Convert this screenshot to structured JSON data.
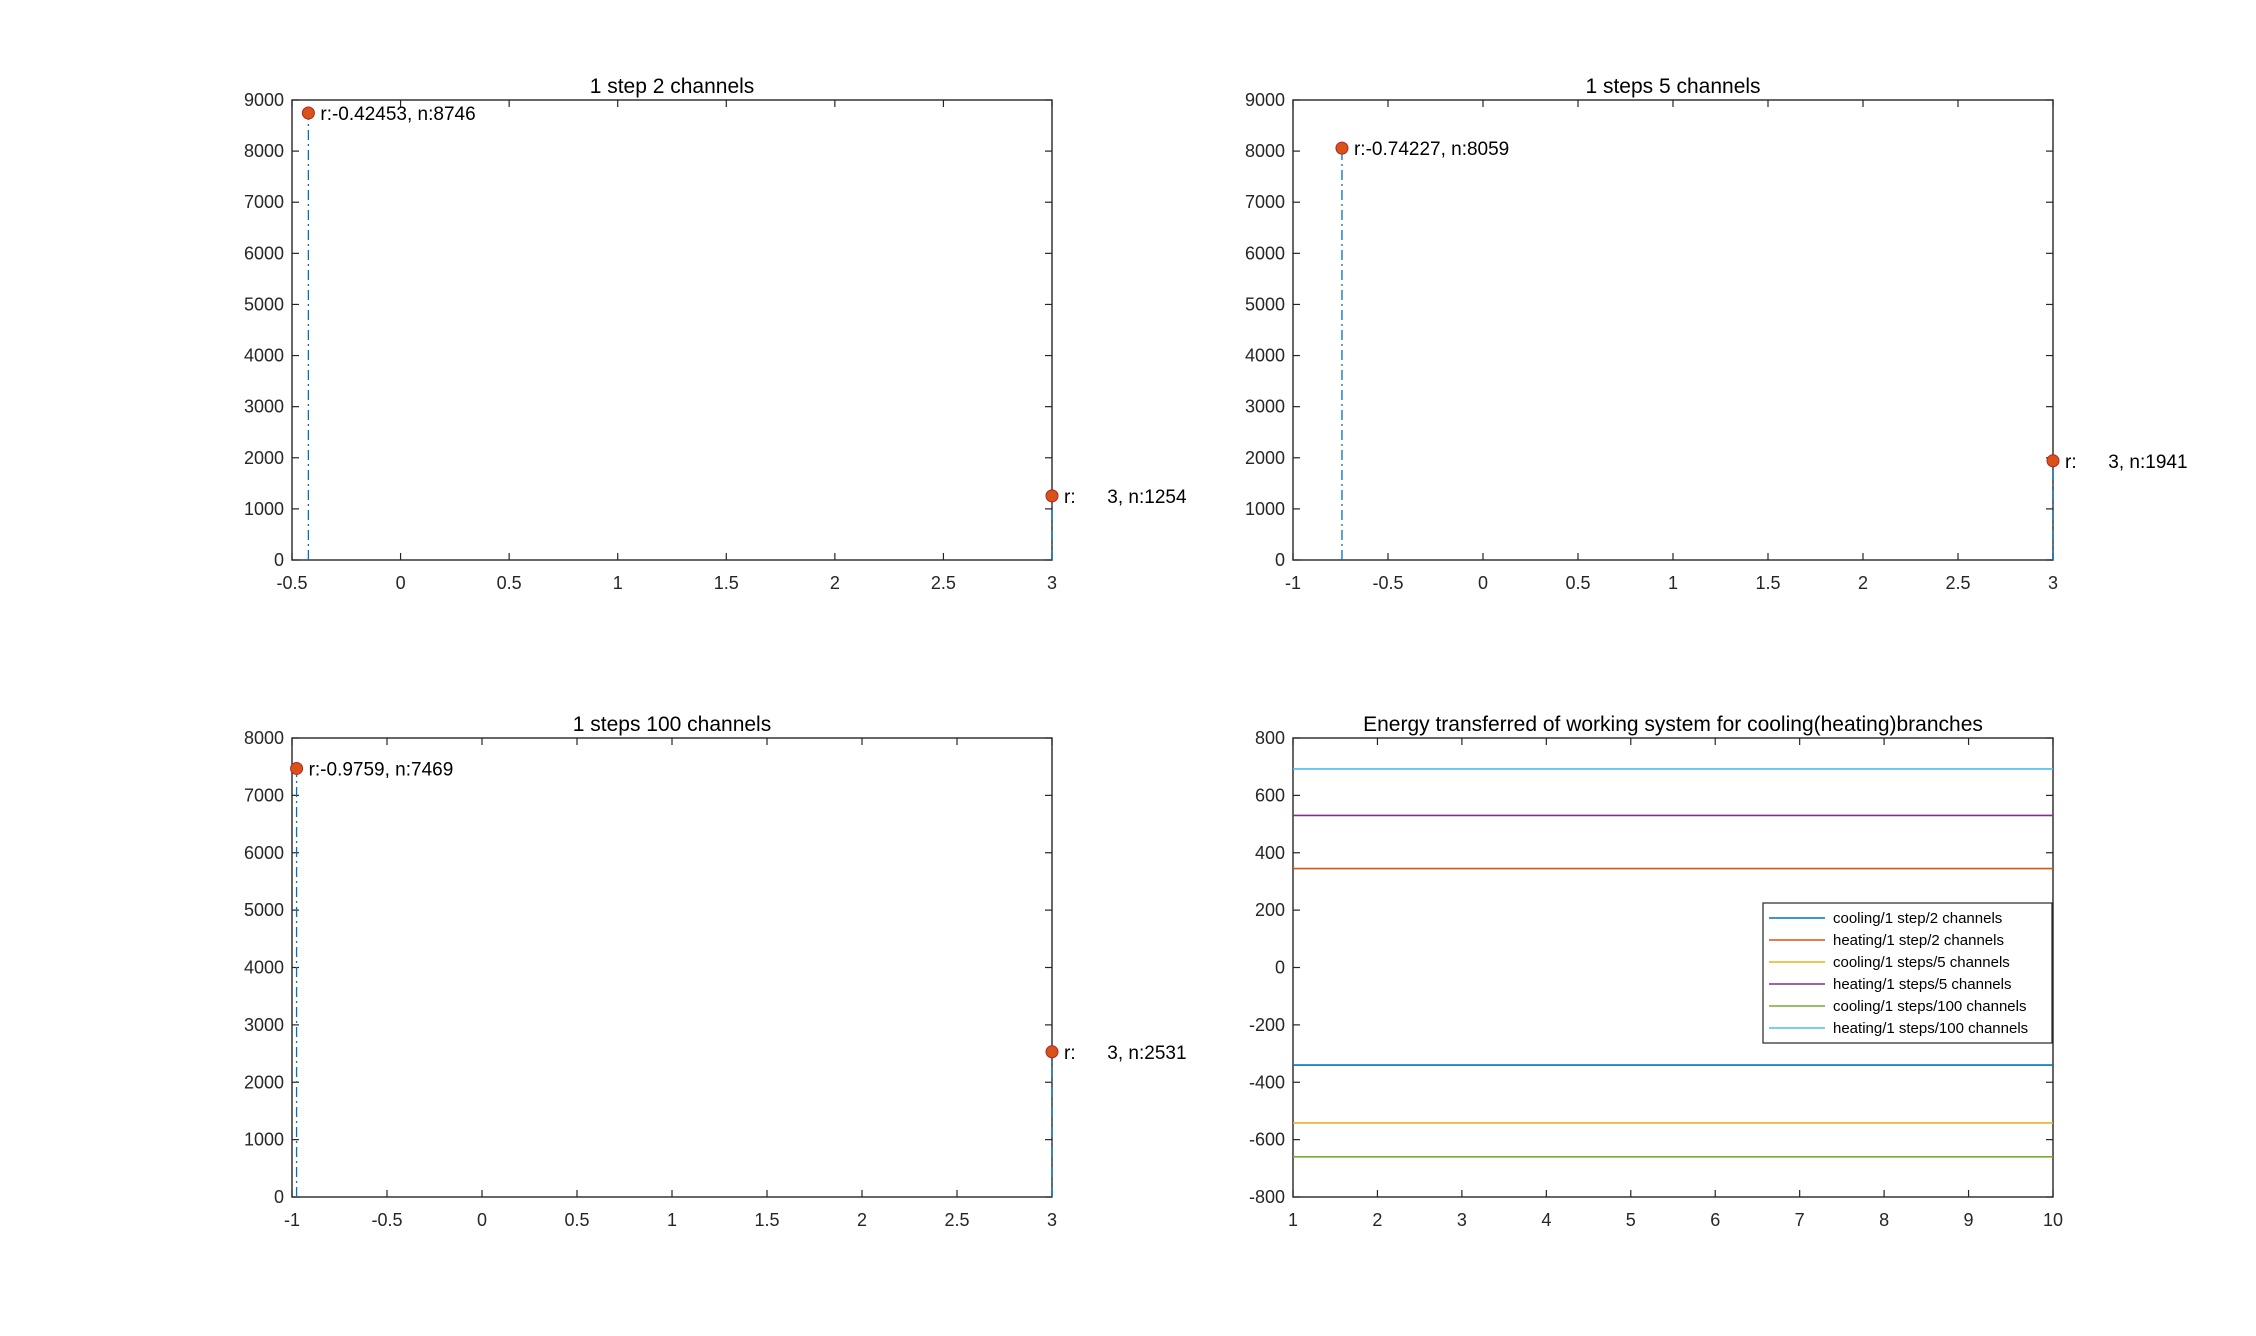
{
  "chart_data": [
    {
      "type": "stem",
      "title": "1 step 2 channels",
      "xlim": [
        -0.5,
        3
      ],
      "xticks": [
        -0.5,
        0,
        0.5,
        1,
        1.5,
        2,
        2.5,
        3
      ],
      "xtick_labels": [
        "-0.5",
        "0",
        "0.5",
        "1",
        "1.5",
        "2",
        "2.5",
        "3"
      ],
      "ylim": [
        0,
        9000
      ],
      "yticks": [
        0,
        1000,
        2000,
        3000,
        4000,
        5000,
        6000,
        7000,
        8000,
        9000
      ],
      "ytick_labels": [
        "0",
        "1000",
        "2000",
        "3000",
        "4000",
        "5000",
        "6000",
        "7000",
        "8000",
        "9000"
      ],
      "stem_color": "#0072BD",
      "marker_color": "#D95319",
      "points": [
        {
          "x": -0.42453,
          "y": 8746,
          "label": "r:-0.42453, n:8746"
        },
        {
          "x": 3,
          "y": 1254,
          "label": "r:      3, n:1254"
        }
      ]
    },
    {
      "type": "stem",
      "title": "1 steps 5 channels",
      "xlim": [
        -1,
        3
      ],
      "xticks": [
        -1,
        -0.5,
        0,
        0.5,
        1,
        1.5,
        2,
        2.5,
        3
      ],
      "xtick_labels": [
        "-1",
        "-0.5",
        "0",
        "0.5",
        "1",
        "1.5",
        "2",
        "2.5",
        "3"
      ],
      "ylim": [
        0,
        9000
      ],
      "yticks": [
        0,
        1000,
        2000,
        3000,
        4000,
        5000,
        6000,
        7000,
        8000,
        9000
      ],
      "ytick_labels": [
        "0",
        "1000",
        "2000",
        "3000",
        "4000",
        "5000",
        "6000",
        "7000",
        "8000",
        "9000"
      ],
      "stem_color": "#0072BD",
      "marker_color": "#D95319",
      "points": [
        {
          "x": -0.74227,
          "y": 8059,
          "label": "r:-0.74227, n:8059"
        },
        {
          "x": 3,
          "y": 1941,
          "label": "r:      3, n:1941"
        }
      ]
    },
    {
      "type": "stem",
      "title": "1 steps 100 channels",
      "xlim": [
        -1,
        3
      ],
      "xticks": [
        -1,
        -0.5,
        0,
        0.5,
        1,
        1.5,
        2,
        2.5,
        3
      ],
      "xtick_labels": [
        "-1",
        "-0.5",
        "0",
        "0.5",
        "1",
        "1.5",
        "2",
        "2.5",
        "3"
      ],
      "ylim": [
        0,
        8000
      ],
      "yticks": [
        0,
        1000,
        2000,
        3000,
        4000,
        5000,
        6000,
        7000,
        8000
      ],
      "ytick_labels": [
        "0",
        "1000",
        "2000",
        "3000",
        "4000",
        "5000",
        "6000",
        "7000",
        "8000"
      ],
      "stem_color": "#0072BD",
      "marker_color": "#D95319",
      "points": [
        {
          "x": -0.9759,
          "y": 7469,
          "label": "r:-0.9759, n:7469"
        },
        {
          "x": 3,
          "y": 2531,
          "label": "r:      3, n:2531"
        }
      ]
    },
    {
      "type": "line",
      "title": "Energy transferred of working system for cooling(heating)branches",
      "xlim": [
        1,
        10
      ],
      "xticks": [
        1,
        2,
        3,
        4,
        5,
        6,
        7,
        8,
        9,
        10
      ],
      "xtick_labels": [
        "1",
        "2",
        "3",
        "4",
        "5",
        "6",
        "7",
        "8",
        "9",
        "10"
      ],
      "ylim": [
        -800,
        800
      ],
      "yticks": [
        -800,
        -600,
        -400,
        -200,
        0,
        200,
        400,
        600,
        800
      ],
      "ytick_labels": [
        "-800",
        "-600",
        "-400",
        "-200",
        "0",
        "200",
        "400",
        "600",
        "800"
      ],
      "legend_position": "east",
      "series": [
        {
          "name": "cooling/1 step/2 channels",
          "color": "#0072BD",
          "x": [
            1,
            10
          ],
          "y": [
            -340,
            -340
          ]
        },
        {
          "name": "heating/1 step/2 channels",
          "color": "#D95319",
          "x": [
            1,
            10
          ],
          "y": [
            345,
            345
          ]
        },
        {
          "name": "cooling/1 steps/5 channels",
          "color": "#EDB120",
          "x": [
            1,
            10
          ],
          "y": [
            -542,
            -542
          ]
        },
        {
          "name": "heating/1 steps/5 channels",
          "color": "#7E2F8E",
          "x": [
            1,
            10
          ],
          "y": [
            530,
            530
          ]
        },
        {
          "name": "cooling/1 steps/100 channels",
          "color": "#77AC30",
          "x": [
            1,
            10
          ],
          "y": [
            -660,
            -660
          ]
        },
        {
          "name": "heating/1 steps/100 channels",
          "color": "#4DBEEE",
          "x": [
            1,
            10
          ],
          "y": [
            692,
            692
          ]
        }
      ]
    }
  ]
}
